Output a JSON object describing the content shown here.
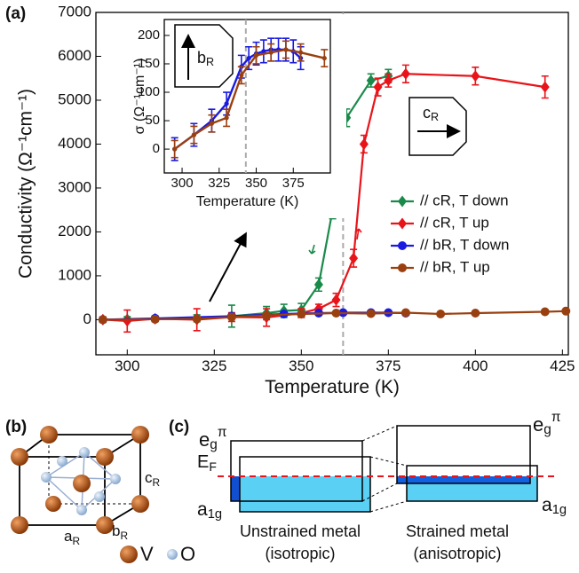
{
  "panel_labels": [
    "(a)",
    "(b)",
    "(c)"
  ],
  "chart_data": [
    {
      "type": "line",
      "x_label": "Temperature (K)",
      "y_label": "Conductivity (Ω⁻¹cm⁻¹)",
      "xlim": [
        291,
        426.7
      ],
      "ylim": [
        -800,
        7000
      ],
      "xticks": [
        300,
        325,
        350,
        375,
        400,
        425
      ],
      "yticks": [
        0,
        1000,
        2000,
        3000,
        4000,
        5000,
        6000,
        7000
      ],
      "reference_x": 362,
      "legend": "right",
      "series": [
        {
          "name": "// cR, T down",
          "color": "#1a8a4a",
          "marker": "diamond",
          "x": [
            293,
            300,
            308,
            320,
            330,
            340,
            345,
            350,
            355,
            359,
            363,
            370,
            375
          ],
          "values": [
            0,
            10,
            20,
            30,
            80,
            150,
            200,
            220,
            800,
            2500,
            4600,
            5450,
            5550
          ],
          "errors": [
            60,
            60,
            60,
            80,
            250,
            150,
            150,
            150,
            150,
            200,
            200,
            150,
            150
          ]
        },
        {
          "name": "// cR, T up",
          "color": "#e8141a",
          "marker": "diamond",
          "x": [
            293,
            300,
            308,
            320,
            330,
            340,
            350,
            355,
            360,
            365,
            368,
            372,
            375,
            380,
            400,
            420
          ],
          "values": [
            0,
            -30,
            20,
            0,
            60,
            50,
            150,
            250,
            450,
            1400,
            4000,
            5300,
            5450,
            5600,
            5550,
            5300
          ],
          "errors": [
            60,
            250,
            60,
            250,
            100,
            200,
            100,
            100,
            150,
            200,
            200,
            200,
            150,
            200,
            200,
            250
          ]
        },
        {
          "name": "// bR, T down",
          "color": "#1a1ae0",
          "marker": "circle",
          "x": [
            293,
            308,
            330,
            345,
            355,
            362,
            370,
            375,
            380
          ],
          "values": [
            0,
            30,
            80,
            130,
            150,
            160,
            160,
            160,
            150
          ]
        },
        {
          "name": "// bR, T up",
          "color": "#9a4010",
          "marker": "circle",
          "x": [
            293,
            308,
            320,
            330,
            340,
            350,
            360,
            370,
            380,
            390,
            400,
            420,
            426
          ],
          "values": [
            0,
            10,
            20,
            60,
            100,
            130,
            150,
            140,
            160,
            130,
            150,
            180,
            195
          ]
        }
      ]
    },
    {
      "type": "line",
      "x_label": "Temperature (K)",
      "y_label": "σ (Ω⁻¹cm⁻¹)",
      "xlim": [
        288,
        400
      ],
      "ylim": [
        -42,
        228
      ],
      "xticks": [
        300,
        325,
        350,
        375
      ],
      "yticks": [
        0,
        50,
        100,
        150,
        200
      ],
      "reference_x": 343,
      "series": [
        {
          "color": "#1a1ae0",
          "marker": "circle",
          "x": [
            295,
            308,
            320,
            330,
            340,
            345,
            350,
            355,
            360,
            365,
            370,
            375,
            380
          ],
          "values": [
            0,
            25,
            50,
            80,
            145,
            160,
            168,
            172,
            175,
            175,
            175,
            172,
            160
          ],
          "errors": [
            20,
            20,
            20,
            20,
            20,
            20,
            20,
            20,
            20,
            20,
            20,
            20,
            20
          ]
        },
        {
          "color": "#9a4010",
          "marker": "circle",
          "x": [
            295,
            308,
            320,
            330,
            340,
            350,
            360,
            370,
            380,
            396
          ],
          "values": [
            0,
            25,
            45,
            55,
            130,
            165,
            170,
            175,
            170,
            160
          ],
          "errors": [
            15,
            15,
            15,
            15,
            15,
            15,
            15,
            15,
            15,
            15
          ]
        }
      ]
    }
  ],
  "direction_labels": {
    "inset": {
      "text": "b",
      "sub": "R"
    },
    "main": {
      "text": "c",
      "sub": "R"
    }
  },
  "crystal": {
    "a": {
      "text": "a",
      "sub": "R"
    },
    "b": {
      "text": "b",
      "sub": "R"
    },
    "c": {
      "text": "c",
      "sub": "R"
    },
    "v": "V",
    "o": "O"
  },
  "bands": {
    "eg": {
      "text": "e",
      "sub": "g",
      "sup": "π"
    },
    "ef": {
      "text": "E",
      "sub": "F"
    },
    "a1g": {
      "text": "a",
      "sub": "1g"
    },
    "unstrained": [
      "Unstrained metal",
      "(isotropic)"
    ],
    "strained": [
      "Strained metal",
      "(anisotropic)"
    ]
  }
}
